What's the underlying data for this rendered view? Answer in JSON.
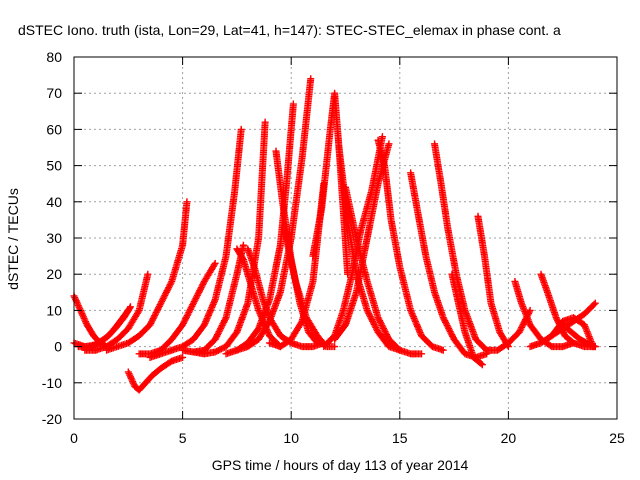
{
  "chart_data": {
    "type": "scatter",
    "title": "dSTEC Iono. truth (ista, Lon=29, Lat=41, h=147): STEC-STEC_elemax in phase cont. a",
    "xlabel": "GPS time / hours of day 113 of year 2014",
    "ylabel": "dSTEC  / TECUs",
    "xlim": [
      0,
      25
    ],
    "ylim": [
      -20,
      80
    ],
    "x_ticks": [
      "0",
      "5",
      "10",
      "15",
      "20",
      "25"
    ],
    "y_ticks": [
      "-20",
      "-10",
      "0",
      "10",
      "20",
      "30",
      "40",
      "50",
      "60",
      "70",
      "80"
    ],
    "grid": true,
    "legend": "none",
    "marker": "plus",
    "color": "#ff0000",
    "series": [
      {
        "x": [
          0.0,
          0.3,
          0.6,
          0.9,
          1.2,
          1.5
        ],
        "y": [
          14,
          10,
          6,
          3,
          1,
          0
        ]
      },
      {
        "x": [
          0.0,
          0.5,
          1.0,
          1.6,
          2.0,
          2.5
        ],
        "y": [
          1,
          0,
          0.5,
          3,
          6,
          10
        ]
      },
      {
        "x": [
          0.2,
          0.8,
          1.4,
          1.9,
          2.3,
          2.6
        ],
        "y": [
          0,
          0,
          2,
          5,
          8,
          11
        ]
      },
      {
        "x": [
          0.5,
          1.0,
          1.5,
          2.0,
          2.5,
          3.0,
          3.4
        ],
        "y": [
          -1,
          -1,
          0,
          2,
          5,
          10,
          20
        ]
      },
      {
        "x": [
          2.5,
          2.8,
          3.0,
          3.3,
          3.6,
          4.0,
          4.5,
          5.0
        ],
        "y": [
          -7,
          -11,
          -12,
          -10,
          -8,
          -6,
          -4,
          -3
        ]
      },
      {
        "x": [
          1.5,
          2.5,
          3.0,
          3.5,
          4.0,
          4.5,
          5.0,
          5.2
        ],
        "y": [
          -1,
          1,
          3,
          6,
          12,
          18,
          28,
          40
        ]
      },
      {
        "x": [
          3.0,
          3.5,
          4.0,
          4.5,
          5.0,
          5.5,
          6.0,
          6.5
        ],
        "y": [
          -2,
          -2,
          -1,
          2,
          6,
          12,
          18,
          23
        ]
      },
      {
        "x": [
          3.5,
          4.0,
          4.5,
          5.0,
          5.5,
          6.0,
          6.5,
          7.0,
          7.4,
          7.7
        ],
        "y": [
          -3,
          -2,
          -1,
          0,
          2,
          6,
          13,
          25,
          43,
          60
        ]
      },
      {
        "x": [
          5.0,
          5.5,
          6.0,
          6.5,
          7.0,
          7.5,
          7.8
        ],
        "y": [
          -1,
          -1.5,
          -1,
          2,
          8,
          20,
          28
        ]
      },
      {
        "x": [
          5.5,
          6.0,
          6.5,
          7.0,
          7.5,
          8.0,
          8.5,
          8.8
        ],
        "y": [
          -1.5,
          -2,
          -1.5,
          0,
          4,
          12,
          30,
          62
        ]
      },
      {
        "x": [
          7.0,
          7.5,
          8.0,
          8.5,
          9.0,
          9.5,
          9.8,
          10.1
        ],
        "y": [
          -2,
          -1,
          1,
          5,
          13,
          28,
          46,
          67
        ]
      },
      {
        "x": [
          7.5,
          8.0,
          8.5,
          9.0,
          9.5,
          10.0,
          10.5,
          10.9
        ],
        "y": [
          -1,
          0,
          2,
          7,
          15,
          30,
          52,
          74
        ]
      },
      {
        "x": [
          8.0,
          8.3,
          8.7,
          9.0,
          9.5,
          10.0,
          10.5,
          11.0,
          11.5
        ],
        "y": [
          27,
          22,
          13,
          8,
          3,
          1,
          0,
          0,
          1
        ]
      },
      {
        "x": [
          7.5,
          7.8,
          8.1,
          8.5,
          9.0,
          9.5
        ],
        "y": [
          27,
          24,
          18,
          10,
          3,
          0
        ]
      },
      {
        "x": [
          9.3,
          9.6,
          10.0,
          10.4,
          10.8,
          11.2
        ],
        "y": [
          54,
          40,
          24,
          12,
          4,
          1
        ]
      },
      {
        "x": [
          9.7,
          10.2,
          10.7,
          11.2,
          11.6,
          12.0
        ],
        "y": [
          32,
          18,
          8,
          3,
          0,
          0
        ]
      },
      {
        "x": [
          9.0,
          9.5,
          10.0,
          10.5,
          11.0,
          11.5
        ],
        "y": [
          1,
          0,
          2,
          7,
          18,
          45
        ]
      },
      {
        "x": [
          11.0,
          11.4,
          11.8,
          12.0,
          12.2,
          12.6
        ],
        "y": [
          25,
          38,
          60,
          70,
          55,
          20
        ]
      },
      {
        "x": [
          11.5,
          12.0,
          12.4,
          12.8,
          13.2,
          13.7,
          14.2
        ],
        "y": [
          0,
          3,
          10,
          20,
          32,
          43,
          58
        ]
      },
      {
        "x": [
          12.2,
          12.6,
          13.0,
          13.5,
          14.0,
          14.5,
          15.0
        ],
        "y": [
          55,
          35,
          20,
          10,
          4,
          0,
          -1
        ]
      },
      {
        "x": [
          12.0,
          12.5,
          13.0,
          13.5,
          14.0,
          14.5
        ],
        "y": [
          2,
          6,
          15,
          30,
          45,
          56
        ]
      },
      {
        "x": [
          12.5,
          13.0,
          13.5,
          14.0,
          14.5,
          15.0,
          15.5,
          16.0
        ],
        "y": [
          44,
          30,
          18,
          8,
          2,
          -1,
          -2,
          -2
        ]
      },
      {
        "x": [
          14.0,
          14.3,
          14.6,
          15.0,
          15.5,
          16.0,
          16.5,
          17.0
        ],
        "y": [
          57,
          50,
          35,
          22,
          10,
          3,
          0,
          -1
        ]
      },
      {
        "x": [
          15.5,
          15.8,
          16.2,
          16.6,
          17.0,
          17.5,
          18.0,
          18.5,
          19.0
        ],
        "y": [
          48,
          38,
          25,
          15,
          8,
          2,
          -2,
          -3,
          -2
        ]
      },
      {
        "x": [
          16.6,
          16.9,
          17.2,
          17.6,
          18.0,
          18.5,
          19.0
        ],
        "y": [
          56,
          45,
          33,
          20,
          10,
          2,
          -1
        ]
      },
      {
        "x": [
          17.4,
          17.7,
          18.0,
          18.4,
          18.8
        ],
        "y": [
          20,
          12,
          4,
          -3,
          -5
        ]
      },
      {
        "x": [
          18.6,
          18.9,
          19.2,
          19.6,
          20.0
        ],
        "y": [
          36,
          25,
          12,
          4,
          0
        ]
      },
      {
        "x": [
          19.0,
          19.5,
          20.0,
          20.5,
          21.0
        ],
        "y": [
          -1,
          -1,
          1,
          4,
          10
        ]
      },
      {
        "x": [
          20.3,
          20.6,
          21.0,
          21.5,
          22.0,
          22.5,
          23.0
        ],
        "y": [
          18,
          12,
          6,
          2,
          0,
          0,
          1
        ]
      },
      {
        "x": [
          21.5,
          21.8,
          22.2,
          22.6,
          23.0,
          23.5,
          24.0
        ],
        "y": [
          20,
          15,
          8,
          3,
          1,
          0,
          0
        ]
      },
      {
        "x": [
          21.0,
          21.5,
          22.0,
          22.5,
          23.0,
          23.5,
          24.0
        ],
        "y": [
          0,
          1,
          3,
          5,
          7,
          9,
          12
        ]
      },
      {
        "x": [
          22.0,
          22.5,
          23.0,
          23.5,
          23.9
        ],
        "y": [
          3,
          7,
          8,
          6,
          0
        ]
      },
      {
        "x": [
          22.5,
          22.9,
          23.3,
          23.6,
          24.0
        ],
        "y": [
          6,
          4,
          2,
          1,
          0
        ]
      }
    ]
  }
}
